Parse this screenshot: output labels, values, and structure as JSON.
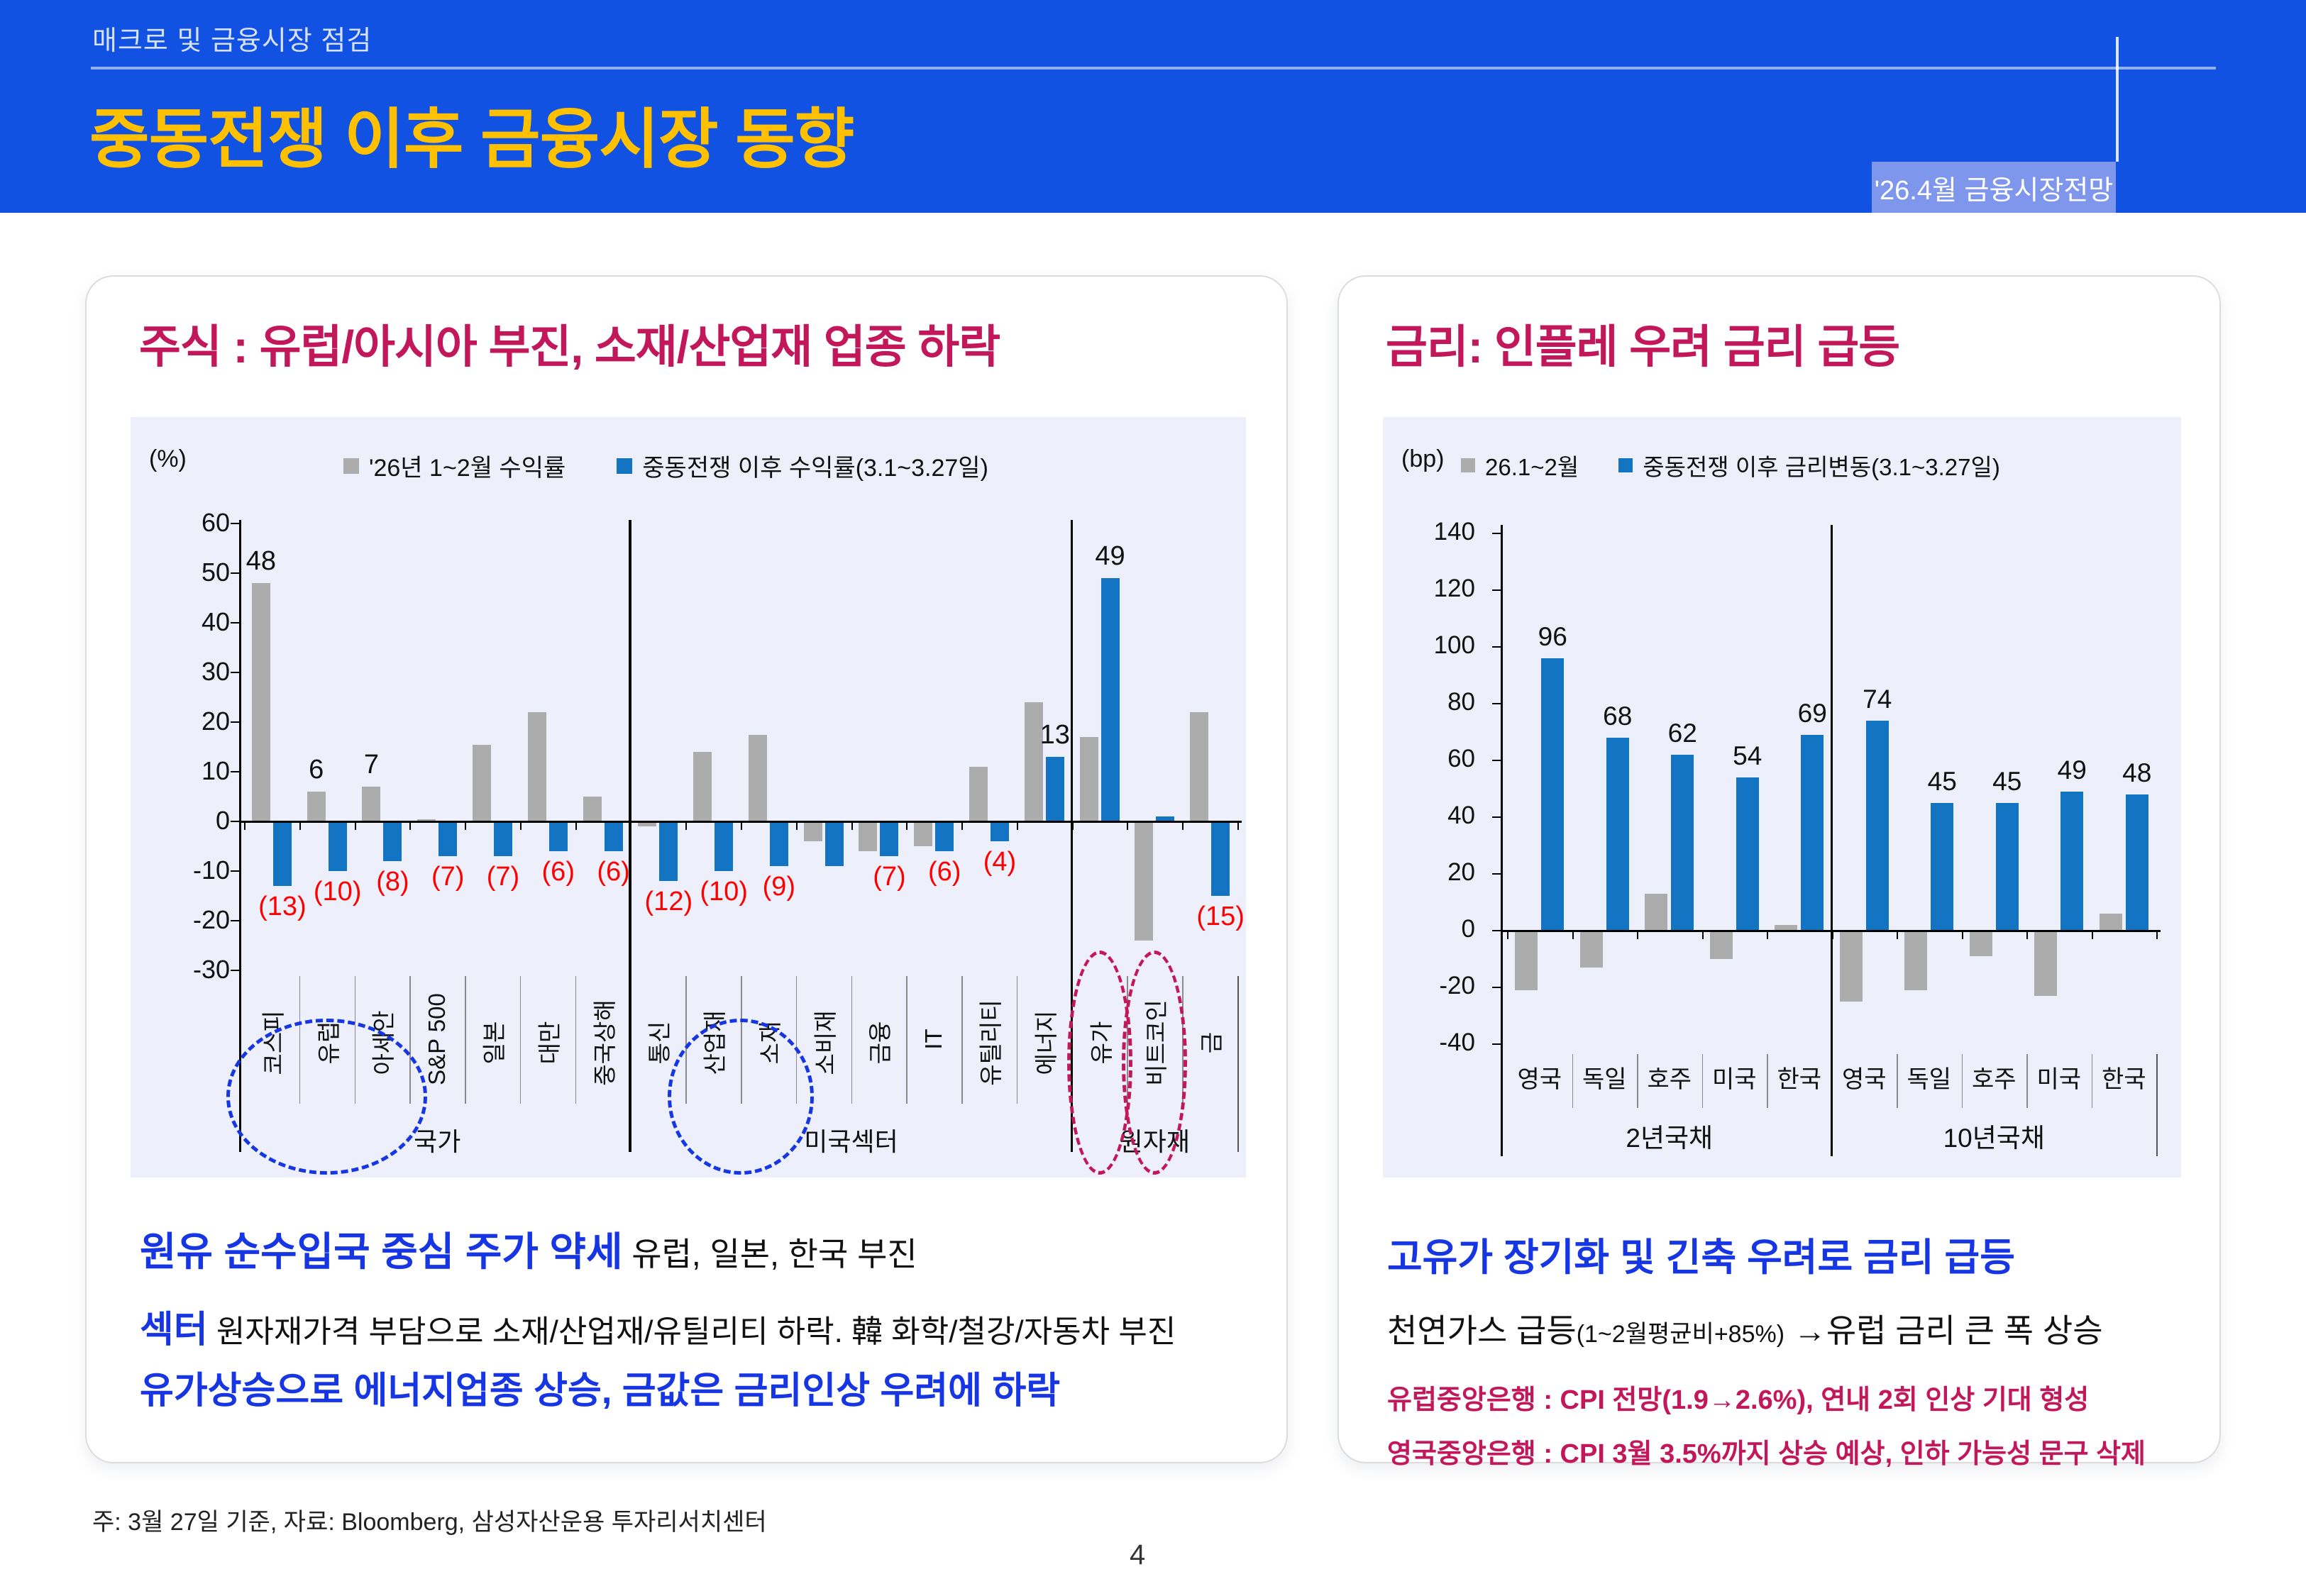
{
  "colors": {
    "header_blue": "#1152E2",
    "title_yellow": "#FFC000",
    "badge_bg": "#7E96EC",
    "panel_title": "#C2185B",
    "accent_blue_text": "#1635E3",
    "bar_blue": "#1474C4",
    "bar_gray": "#ACACAC",
    "label_red": "#FF0000",
    "chart_bg": "#EDF0FA"
  },
  "header": {
    "kicker": "매크로 및 금융시장 점검",
    "title": "중동전쟁 이후 금융시장 동향",
    "badge": "'26.4월 금융시장전망"
  },
  "left_panel": {
    "notes": {
      "n1_highlight": "원유 순수입국 중심 주가 약세",
      "n1_rest": " 유럽, 일본, 한국 부진",
      "n2_highlight": "섹터",
      "n2_rest": " 원자재가격 부담으로 소재/산업재/유틸리티 하락. 韓 화학/철강/자동차 부진",
      "n3_highlight": "유가상승으로 에너지업종 상승, 금값은 금리인상 우려에 하락"
    }
  },
  "right_panel": {
    "notes": {
      "n1": "고유가 장기화 및 긴축 우려로 금리 급등",
      "n2_main": "천연가스 급등",
      "n2_small": "(1~2월평균비+85%)",
      "n2_rest": " →유럽 금리 큰 폭 상승",
      "n3": "유럽중앙은행 : CPI 전망(1.9→2.6%), 연내 2회 인상 기대 형성",
      "n4": "영국중앙은행 : CPI 3월 3.5%까지 상승 예상, 인하 가능성 문구 삭제"
    }
  },
  "footer": {
    "source": "주: 3월 27일 기준, 자료: Bloomberg, 삼성자산운용 투자리서치센터",
    "page": "4"
  },
  "chart_data": [
    {
      "id": "equity-returns",
      "type": "bar",
      "title": "주식 : 유럽/아시아 부진, 소재/산업재 업종 하락",
      "unit_label": "(%)",
      "ylim": [
        -30,
        60
      ],
      "yticks": [
        60,
        50,
        40,
        30,
        20,
        10,
        0,
        -10,
        -20,
        -30
      ],
      "legend": [
        "'26년 1~2월 수익률",
        "중동전쟁 이후 수익률(3.1~3.27일)"
      ],
      "categories": [
        "코스피",
        "유럽",
        "아세안",
        "S&P 500",
        "일본",
        "대만",
        "중국상해",
        "통신",
        "산업재",
        "소재",
        "소비재",
        "금융",
        "IT",
        "유틸리티",
        "에너지",
        "유가",
        "비트코인",
        "금"
      ],
      "groups": [
        {
          "label": "국가",
          "from": 0,
          "to": 6
        },
        {
          "label": "미국섹터",
          "from": 7,
          "to": 14
        },
        {
          "label": "원자재",
          "from": 15,
          "to": 17
        }
      ],
      "series": [
        {
          "name": "'26년 1~2월 수익률",
          "color_key": "bar_gray",
          "values": [
            48,
            6,
            7,
            0.5,
            15.5,
            22,
            5,
            -1,
            14,
            17.5,
            -4,
            -6,
            -5,
            11,
            24,
            17,
            -24,
            22
          ],
          "labels": [
            "48",
            "6",
            "7",
            "",
            "",
            "",
            "",
            "",
            "",
            "",
            "",
            "",
            "",
            "",
            "",
            "",
            "",
            ""
          ]
        },
        {
          "name": "중동전쟁 이후 수익률(3.1~3.27일)",
          "color_key": "bar_blue",
          "values": [
            -13,
            -10,
            -8,
            -7,
            -7,
            -6,
            -6,
            -12,
            -10,
            -9,
            -9,
            -7,
            -6,
            -4,
            13,
            49,
            1,
            -15
          ],
          "labels": [
            "(13)",
            "(10)",
            "(8)",
            "(7)",
            "(7)",
            "(6)",
            "(6)",
            "(12)",
            "(10)",
            "(9)",
            "",
            "(7)",
            "(6)",
            "(4)",
            "13",
            "49",
            "",
            "(15)"
          ]
        }
      ],
      "highlights": [
        {
          "kind": "wide",
          "color_key": "accent_blue_text",
          "from": 0,
          "to": 2
        },
        {
          "kind": "wide",
          "color_key": "accent_blue_text",
          "from": 8,
          "to": 9
        },
        {
          "kind": "tall",
          "color_key": "panel_title",
          "from": 15,
          "to": 15
        },
        {
          "kind": "tall",
          "color_key": "panel_title",
          "from": 16,
          "to": 16
        }
      ]
    },
    {
      "id": "rate-moves",
      "type": "bar",
      "title": "금리: 인플레 우려 금리 급등",
      "unit_label": "(bp)",
      "ylim": [
        -40,
        140
      ],
      "yticks": [
        140,
        120,
        100,
        80,
        60,
        40,
        20,
        0,
        -20,
        -40
      ],
      "legend": [
        "26.1~2월",
        "중동전쟁 이후 금리변동(3.1~3.27일)"
      ],
      "categories": [
        "영국",
        "독일",
        "호주",
        "미국",
        "한국",
        "영국",
        "독일",
        "호주",
        "미국",
        "한국"
      ],
      "groups": [
        {
          "label": "2년국채",
          "from": 0,
          "to": 4
        },
        {
          "label": "10년국채",
          "from": 5,
          "to": 9
        }
      ],
      "series": [
        {
          "name": "26.1~2월",
          "color_key": "bar_gray",
          "values": [
            -21,
            -13,
            13,
            -10,
            2,
            -25,
            -21,
            -9,
            -23,
            6
          ],
          "labels": [
            "",
            "",
            "",
            "",
            "",
            "",
            "",
            "",
            "",
            ""
          ]
        },
        {
          "name": "중동전쟁 이후 금리변동(3.1~3.27일)",
          "color_key": "bar_blue",
          "values": [
            96,
            68,
            62,
            54,
            69,
            74,
            45,
            45,
            49,
            48
          ],
          "labels": [
            "96",
            "68",
            "62",
            "54",
            "69",
            "74",
            "45",
            "45",
            "49",
            "48"
          ]
        }
      ],
      "highlights": []
    }
  ]
}
